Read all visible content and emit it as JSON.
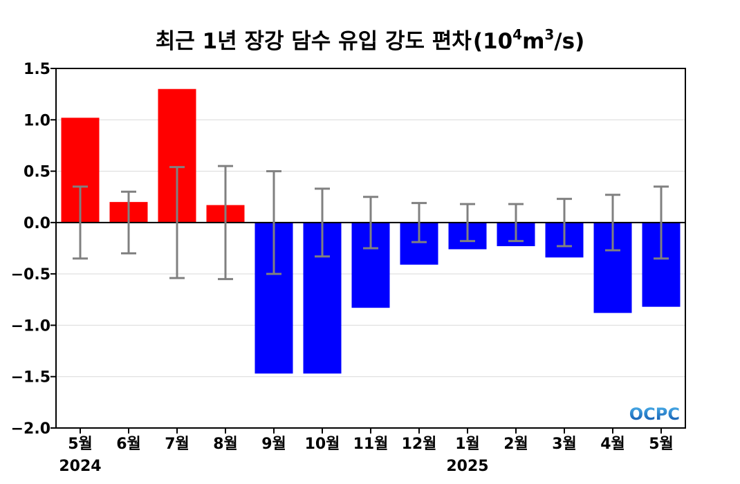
{
  "chart_data": {
    "type": "bar",
    "title": "최근 1년 장강 담수 유입 강도 편차",
    "title_unit_prefix": "(10",
    "title_unit_exp1": "4",
    "title_unit_mid": "m",
    "title_unit_exp2": "3",
    "title_unit_suffix": "/s)",
    "categories": [
      "5월",
      "6월",
      "7월",
      "8월",
      "9월",
      "10월",
      "11월",
      "12월",
      "1월",
      "2월",
      "3월",
      "4월",
      "5월"
    ],
    "year_labels": [
      {
        "category_index": 0,
        "label": "2024"
      },
      {
        "category_index": 8,
        "label": "2025"
      }
    ],
    "values": [
      1.02,
      0.2,
      1.3,
      0.17,
      -1.47,
      -1.47,
      -0.83,
      -0.41,
      -0.26,
      -0.23,
      -0.34,
      -0.88,
      -0.82
    ],
    "error_bars": [
      0.35,
      0.3,
      0.54,
      0.55,
      0.5,
      0.33,
      0.25,
      0.19,
      0.18,
      0.18,
      0.23,
      0.27,
      0.35
    ],
    "ylim": [
      -2.0,
      1.5
    ],
    "yticks": [
      1.5,
      1.0,
      0.5,
      0.0,
      -0.5,
      -1.0,
      -1.5,
      -2.0
    ],
    "ytick_labels": [
      "1.5",
      "1.0",
      "0.5",
      "0.0",
      "−0.5",
      "−1.0",
      "−1.5",
      "−2.0"
    ],
    "grid": true,
    "colors": {
      "positive": "#ff0000",
      "negative": "#0000ff",
      "error_bar": "#808080",
      "grid": "#d9d9d9",
      "zero_line": "#000000"
    },
    "logo_text": "OCPC"
  }
}
